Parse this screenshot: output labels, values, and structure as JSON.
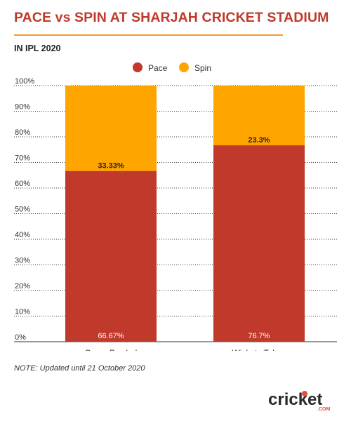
{
  "header": {
    "title": "PACE vs SPIN AT SHARJAH CRICKET STADIUM",
    "subtitle": "IN IPL 2020"
  },
  "footer": {
    "note": "NOTE: Updated until 21 October 2020",
    "logo_text": "cricket",
    "logo_suffix": ".COM"
  },
  "colors": {
    "pace": "#c0392b",
    "spin": "#ffa500",
    "title": "#c0392b",
    "rule": "#f39c34"
  },
  "chart_data": {
    "type": "bar",
    "stacked": true,
    "percent_stacked": true,
    "categories": [
      "Overs Bowled",
      "Wickets Taken"
    ],
    "series": [
      {
        "name": "Pace",
        "values": [
          66.67,
          76.7
        ],
        "labels": [
          "66.67%",
          "76.7%"
        ]
      },
      {
        "name": "Spin",
        "values": [
          33.33,
          23.3
        ],
        "labels": [
          "33.33%",
          "23.3%"
        ]
      }
    ],
    "ylim": [
      0,
      100
    ],
    "yticks": [
      "0%",
      "10%",
      "20%",
      "30%",
      "40%",
      "50%",
      "60%",
      "70%",
      "80%",
      "90%",
      "100%"
    ],
    "grid": true,
    "legend": "top-center"
  }
}
